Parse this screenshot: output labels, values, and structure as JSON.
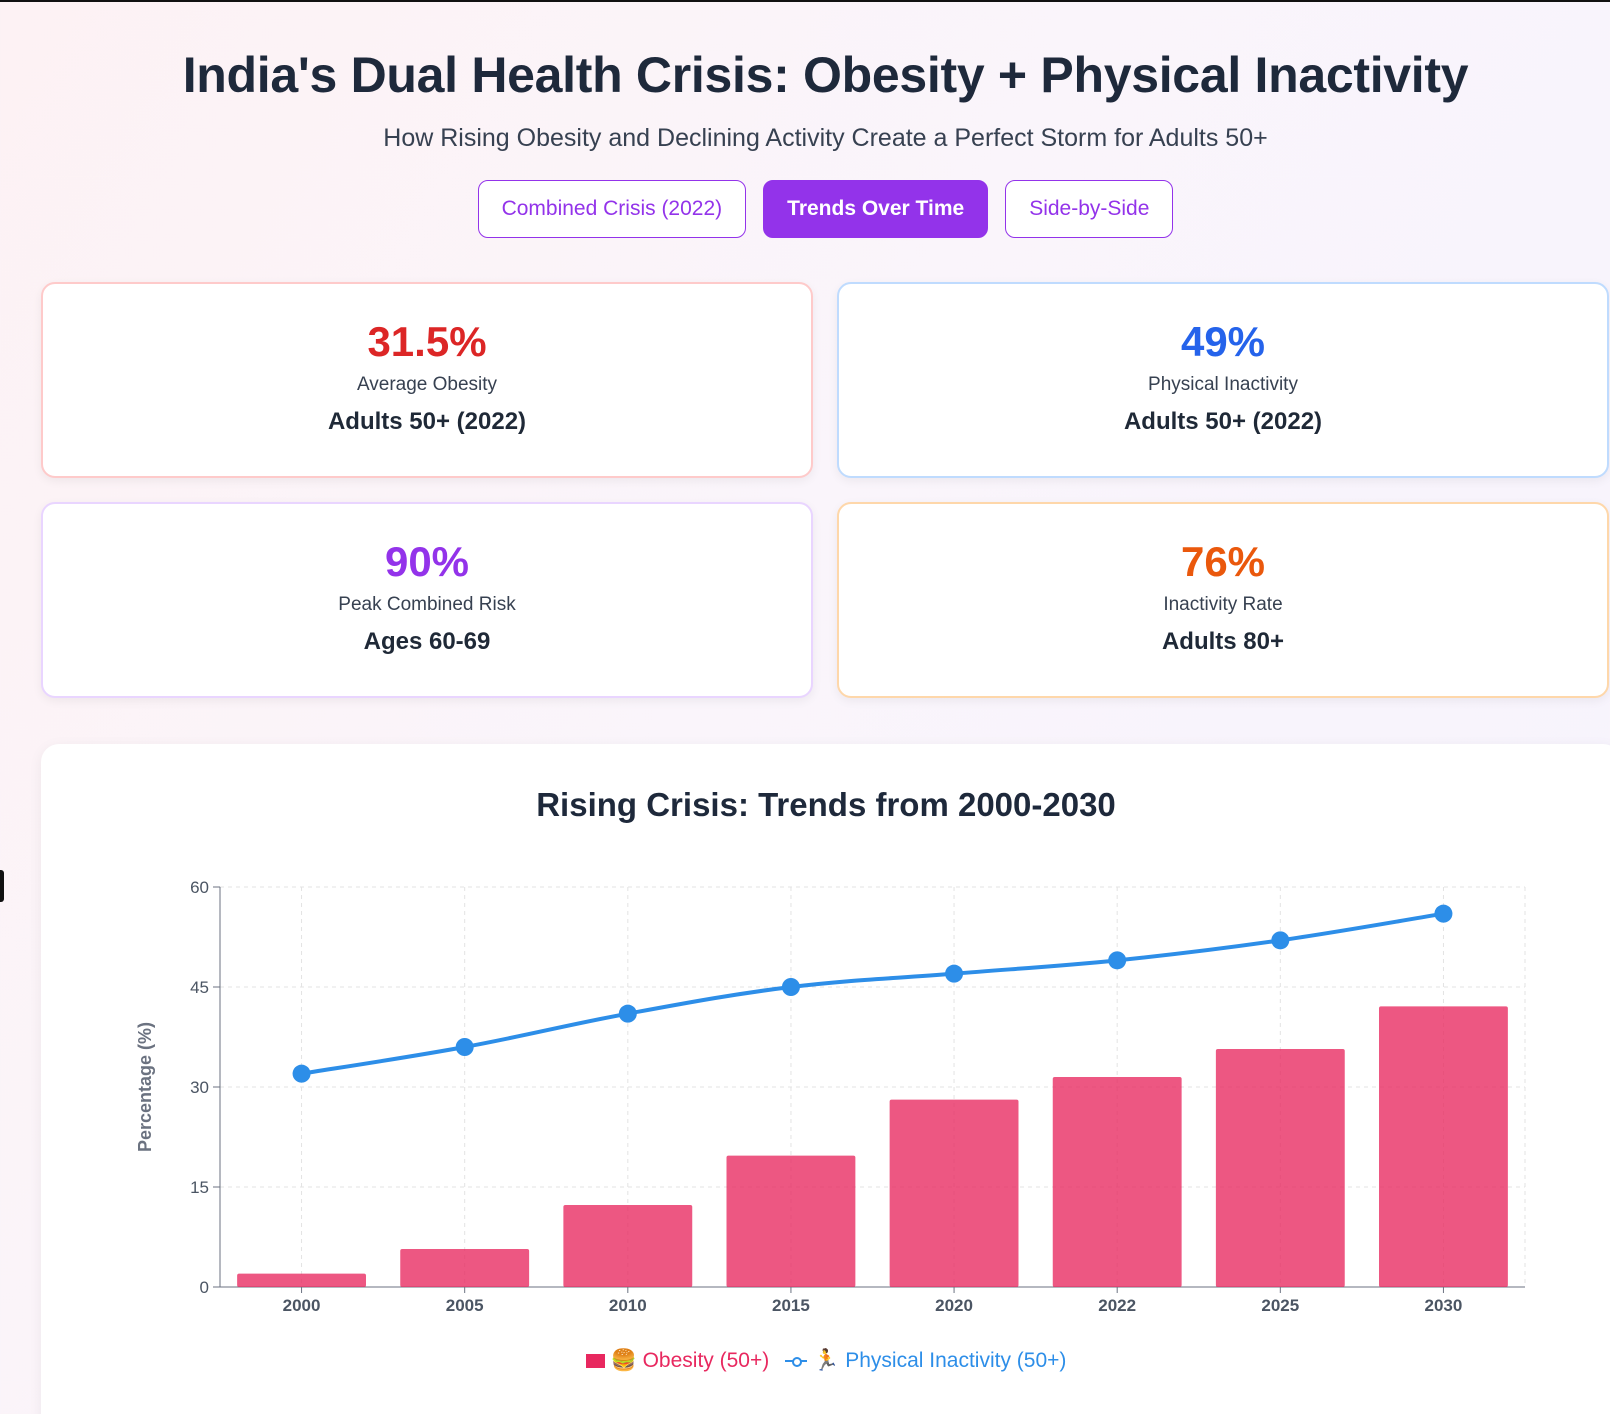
{
  "header": {
    "title": "India's Dual Health Crisis: Obesity + Physical Inactivity",
    "subtitle": "How Rising Obesity and Declining Activity Create a Perfect Storm for Adults 50+"
  },
  "tabs": [
    {
      "label": "Combined Crisis (2022)",
      "active": false
    },
    {
      "label": "Trends Over Time",
      "active": true
    },
    {
      "label": "Side-by-Side",
      "active": false
    }
  ],
  "stats": [
    {
      "value": "31.5%",
      "label": "Average Obesity",
      "sub": "Adults 50+ (2022)",
      "color": "#dc2626",
      "border": "#fecaca"
    },
    {
      "value": "49%",
      "label": "Physical Inactivity",
      "sub": "Adults 50+ (2022)",
      "color": "#2563eb",
      "border": "#bfdbfe"
    },
    {
      "value": "90%",
      "label": "Peak Combined Risk",
      "sub": "Ages 60-69",
      "color": "#9333ea",
      "border": "#e9d5ff"
    },
    {
      "value": "76%",
      "label": "Inactivity Rate",
      "sub": "Adults 80+",
      "color": "#ea580c",
      "border": "#fed7aa"
    }
  ],
  "chart_data": {
    "type": "bar",
    "title": "Rising Crisis: Trends from 2000-2030",
    "categories": [
      "2000",
      "2005",
      "2010",
      "2015",
      "2020",
      "2022",
      "2025",
      "2030"
    ],
    "series": [
      {
        "name": "Obesity (50+)",
        "type": "bar",
        "color": "#e8285f",
        "values": [
          2,
          5.7,
          12.3,
          19.7,
          28.1,
          31.5,
          35.7,
          42.1
        ]
      },
      {
        "name": "Physical Inactivity (50+)",
        "type": "line",
        "color": "#2d8ee8",
        "values": [
          32,
          36,
          41,
          45,
          47,
          49,
          52,
          56
        ]
      }
    ],
    "ylabel": "Percentage (%)",
    "xlabel": "",
    "ylim": [
      0,
      60
    ],
    "yticks": [
      0,
      15,
      30,
      45,
      60
    ],
    "grid": true,
    "legend": [
      {
        "label": "🍔 Obesity (50+)"
      },
      {
        "label": "🏃 Physical Inactivity (50+)"
      }
    ]
  }
}
